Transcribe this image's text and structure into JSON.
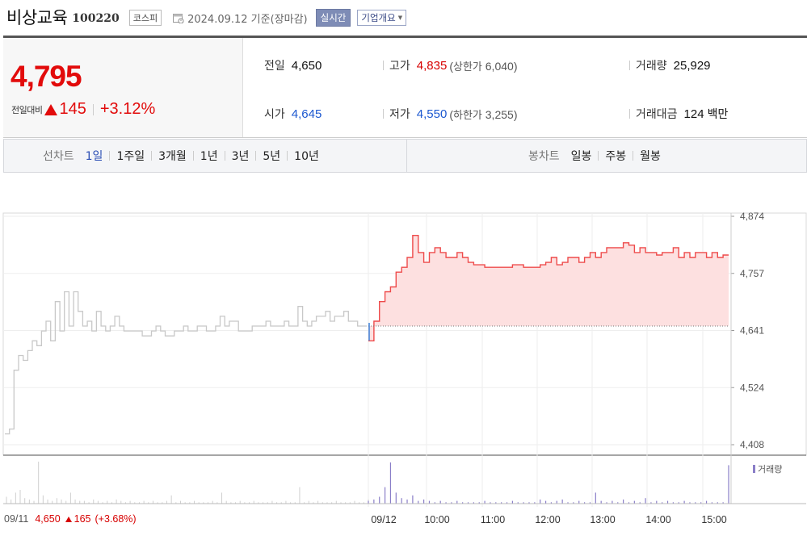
{
  "header": {
    "stock_name": "비상교육",
    "stock_code": "100220",
    "market": "코스피",
    "date_text": "2024.09.12 기준(장마감)",
    "realtime_label": "실시간",
    "company_label": "기업개요"
  },
  "summary": {
    "current_price": "4,795",
    "change_label": "전일대비",
    "change_value": "145",
    "change_pct": "+3.12%",
    "prev_close_label": "전일",
    "prev_close": "4,650",
    "high_label": "고가",
    "high": "4,835",
    "upper_limit_label": "상한가",
    "upper_limit": "6,040",
    "volume_label": "거래량",
    "volume": "25,929",
    "open_label": "시가",
    "open": "4,645",
    "low_label": "저가",
    "low": "4,550",
    "lower_limit_label": "하한가",
    "lower_limit": "3,255",
    "amount_label": "거래대금",
    "amount": "124",
    "amount_unit": "백만"
  },
  "tabs": {
    "line_title": "선차트",
    "line_items": [
      "1일",
      "1주일",
      "3개월",
      "1년",
      "3년",
      "5년",
      "10년"
    ],
    "candle_title": "봉차트",
    "candle_items": [
      "일봉",
      "주봉",
      "월봉"
    ]
  },
  "chart_data": {
    "type": "line",
    "y_ticks": [
      "4,874",
      "4,757",
      "4,641",
      "4,524",
      "4,408"
    ],
    "ylim": [
      4408,
      4874
    ],
    "baseline": 4650,
    "x_labels": [
      "09/11",
      "09/12",
      "10:00",
      "11:00",
      "12:00",
      "13:00",
      "14:00",
      "15:00"
    ],
    "volume_legend": "거래량",
    "prev_day_series": [
      4430,
      4440,
      4560,
      4590,
      4580,
      4600,
      4620,
      4610,
      4640,
      4660,
      4620,
      4700,
      4640,
      4720,
      4650,
      4720,
      4680,
      4650,
      4660,
      4640,
      4680,
      4650,
      4640,
      4650,
      4670,
      4650,
      4640,
      4640,
      4640,
      4640,
      4630,
      4630,
      4640,
      4650,
      4640,
      4630,
      4630,
      4640,
      4640,
      4650,
      4640,
      4640,
      4650,
      4650,
      4640,
      4640,
      4650,
      4670,
      4650,
      4660,
      4660,
      4640,
      4640,
      4640,
      4650,
      4650,
      4650,
      4660,
      4650,
      4650,
      4650,
      4660,
      4650,
      4650,
      4690,
      4660,
      4650,
      4660,
      4670,
      4670,
      4680,
      4660,
      4670,
      4670,
      4680,
      4660,
      4660,
      4650,
      4650,
      4650
    ],
    "today_series": [
      4620,
      4660,
      4700,
      4720,
      4730,
      4760,
      4770,
      4790,
      4835,
      4800,
      4780,
      4800,
      4810,
      4800,
      4790,
      4790,
      4800,
      4790,
      4780,
      4775,
      4775,
      4770,
      4770,
      4770,
      4770,
      4770,
      4775,
      4775,
      4770,
      4770,
      4770,
      4775,
      4780,
      4790,
      4775,
      4780,
      4790,
      4790,
      4780,
      4790,
      4800,
      4790,
      4800,
      4810,
      4810,
      4810,
      4820,
      4815,
      4800,
      4810,
      4800,
      4800,
      4795,
      4800,
      4800,
      4810,
      4790,
      4800,
      4790,
      4800,
      4800,
      4790,
      4800,
      4790,
      4795,
      4795
    ],
    "volume_today": [
      2,
      3,
      5,
      12,
      30,
      8,
      4,
      3,
      6,
      2,
      3,
      2,
      1,
      2,
      1,
      1,
      2,
      1,
      1,
      1,
      1,
      2,
      1,
      1,
      1,
      1,
      2,
      1,
      1,
      1,
      1,
      3,
      2,
      1,
      2,
      3,
      1,
      1,
      2,
      1,
      1,
      8,
      2,
      1,
      2,
      1,
      3,
      1,
      2,
      1,
      4,
      1,
      2,
      1,
      2,
      1,
      1,
      2,
      1,
      1,
      1,
      2,
      1,
      1,
      1,
      28
    ],
    "volume_prev": [
      5,
      3,
      8,
      10,
      4,
      3,
      2,
      40,
      6,
      3,
      2,
      4,
      3,
      2,
      8,
      3,
      2,
      2,
      1,
      3,
      2,
      1,
      2,
      1,
      3,
      2,
      1,
      2,
      1,
      1,
      2,
      1,
      2,
      1,
      1,
      2,
      6,
      1,
      2,
      1,
      1,
      2,
      1,
      1,
      1,
      2,
      1,
      8,
      2,
      1,
      1,
      2,
      1,
      1,
      2,
      1,
      1,
      1,
      2,
      1,
      1,
      2,
      1,
      1,
      12,
      1,
      2,
      1,
      2,
      1,
      1,
      1,
      2,
      1,
      1,
      1,
      2,
      1,
      1,
      3
    ],
    "footer_date": "09/11",
    "footer_price": "4,650",
    "footer_change": "165",
    "footer_pct": "(+3.68%)"
  },
  "colors": {
    "up": "#d70000",
    "down": "#1c58d0",
    "today_line": "#ee4b4b",
    "today_fill": "#fde0e0",
    "prev_line": "#c8c8c8",
    "volume_bar": "#8a7ec8"
  }
}
